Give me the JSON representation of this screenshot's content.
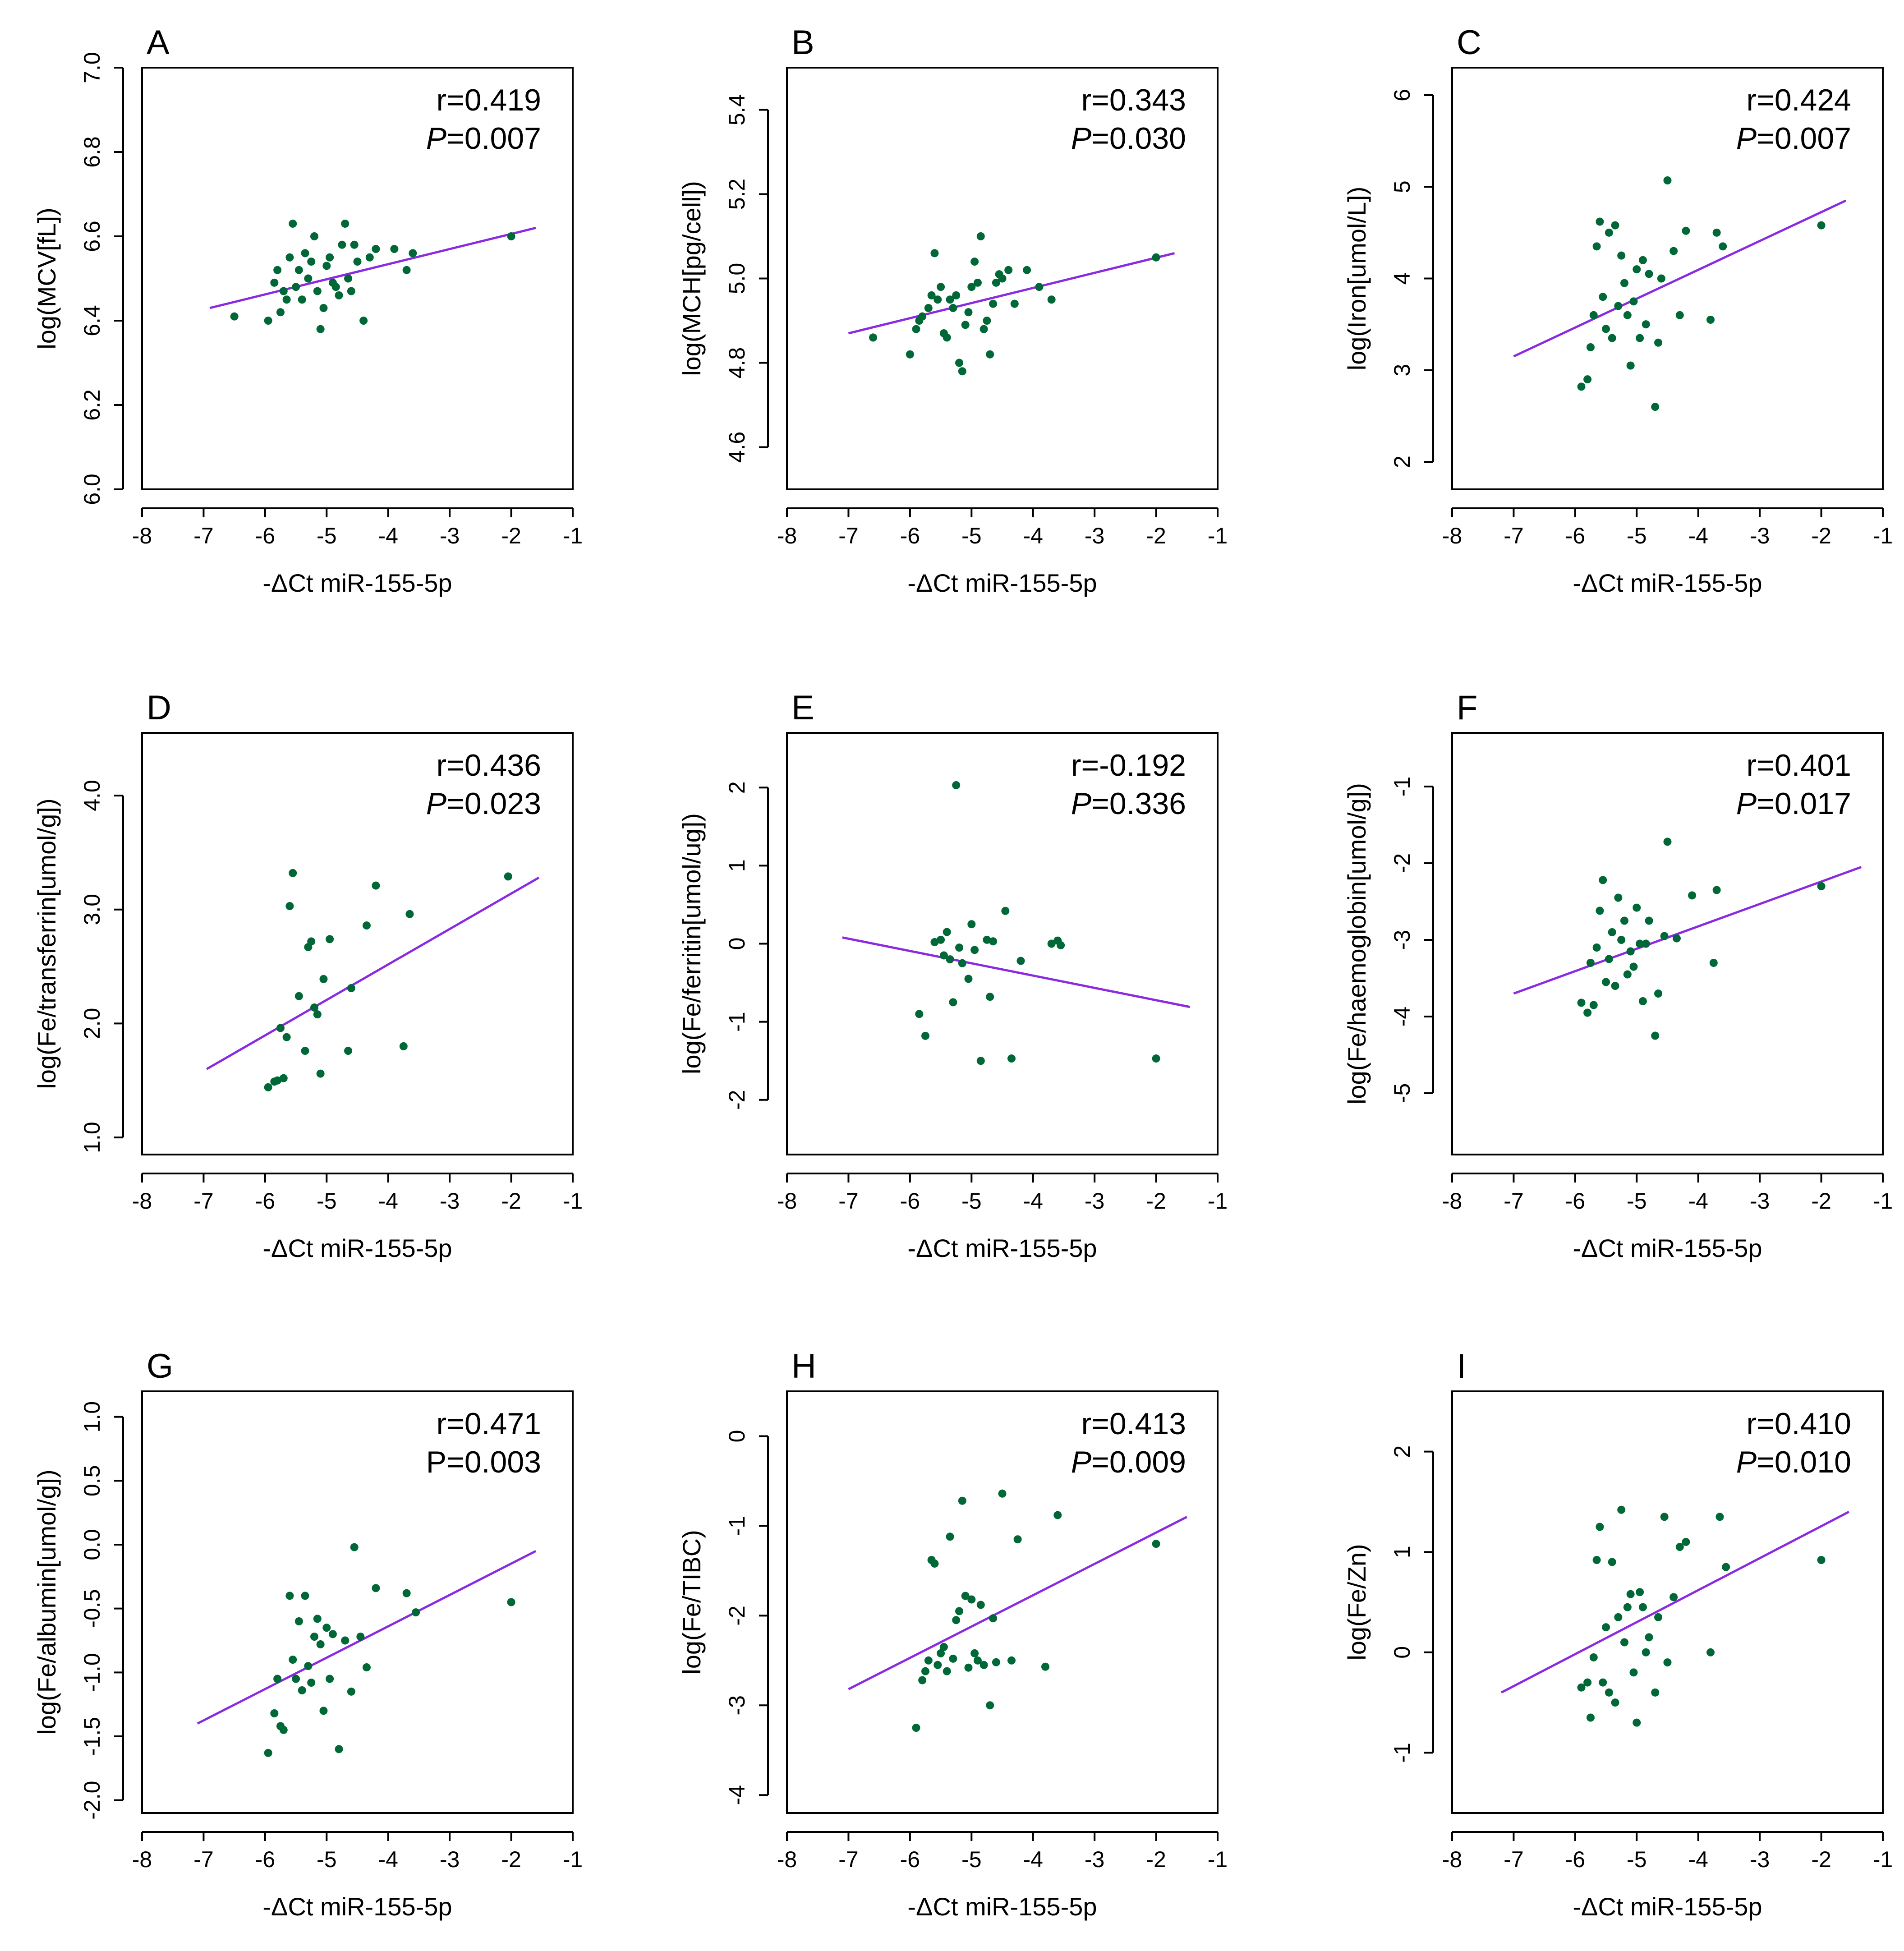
{
  "figure": {
    "point_color": "#006837",
    "line_color": "#8a2be2"
  },
  "chart_data": [
    {
      "panel": "A",
      "type": "scatter",
      "xlabel": "-ΔCt miR-155-5p",
      "ylabel": "log(MCV[fL])",
      "xlim": [
        -8,
        -1
      ],
      "ylim": [
        6.0,
        7.0
      ],
      "xticks": [
        -8,
        -7,
        -6,
        -5,
        -4,
        -3,
        -2,
        -1
      ],
      "yticks": [
        6.0,
        6.2,
        6.4,
        6.6,
        6.8,
        7.0
      ],
      "ytick_labels": [
        "6.0",
        "6.2",
        "6.4",
        "6.6",
        "6.8",
        "7.0"
      ],
      "r_text": "r=0.419",
      "p_label": "P",
      "p_italic": true,
      "p_value_text": "=0.007",
      "fit_line": {
        "x": [
          -6.9,
          -1.6
        ],
        "y": [
          6.43,
          6.62
        ]
      },
      "points": {
        "x": [
          -6.5,
          -5.95,
          -5.85,
          -5.8,
          -5.75,
          -5.7,
          -5.65,
          -5.6,
          -5.55,
          -5.5,
          -5.45,
          -5.4,
          -5.35,
          -5.3,
          -5.25,
          -5.2,
          -5.15,
          -5.1,
          -5.05,
          -5.0,
          -4.95,
          -4.9,
          -4.85,
          -4.8,
          -4.75,
          -4.7,
          -4.65,
          -4.6,
          -4.55,
          -4.5,
          -4.4,
          -4.3,
          -4.2,
          -3.9,
          -3.7,
          -3.6,
          -2.0
        ],
        "y": [
          6.41,
          6.4,
          6.49,
          6.52,
          6.42,
          6.47,
          6.45,
          6.55,
          6.63,
          6.48,
          6.52,
          6.45,
          6.56,
          6.5,
          6.54,
          6.6,
          6.47,
          6.38,
          6.43,
          6.53,
          6.55,
          6.49,
          6.48,
          6.46,
          6.58,
          6.63,
          6.5,
          6.47,
          6.58,
          6.54,
          6.4,
          6.55,
          6.57,
          6.57,
          6.52,
          6.56,
          6.6
        ]
      }
    },
    {
      "panel": "B",
      "type": "scatter",
      "xlabel": "-ΔCt miR-155-5p",
      "ylabel": "log(MCH[pg/cell])",
      "xlim": [
        -8,
        -1
      ],
      "ylim": [
        4.5,
        5.5
      ],
      "xticks": [
        -8,
        -7,
        -6,
        -5,
        -4,
        -3,
        -2,
        -1
      ],
      "yticks": [
        4.6,
        4.8,
        5.0,
        5.2,
        5.4
      ],
      "ytick_labels": [
        "4.6",
        "4.8",
        "5.0",
        "5.2",
        "5.4"
      ],
      "r_text": "r=0.343",
      "p_label": "P",
      "p_italic": true,
      "p_value_text": "=0.030",
      "fit_line": {
        "x": [
          -7.0,
          -1.7
        ],
        "y": [
          4.87,
          5.06
        ]
      },
      "points": {
        "x": [
          -6.6,
          -6.0,
          -5.9,
          -5.85,
          -5.8,
          -5.7,
          -5.65,
          -5.6,
          -5.55,
          -5.5,
          -5.45,
          -5.4,
          -5.35,
          -5.3,
          -5.25,
          -5.2,
          -5.15,
          -5.1,
          -5.05,
          -5.0,
          -4.95,
          -4.9,
          -4.85,
          -4.8,
          -4.75,
          -4.7,
          -4.65,
          -4.6,
          -4.55,
          -4.5,
          -4.4,
          -4.3,
          -4.1,
          -3.9,
          -3.7,
          -2.0
        ],
        "y": [
          4.86,
          4.82,
          4.88,
          4.9,
          4.91,
          4.93,
          4.96,
          5.06,
          4.95,
          4.98,
          4.87,
          4.86,
          4.95,
          4.93,
          4.96,
          4.8,
          4.78,
          4.89,
          4.92,
          4.98,
          5.04,
          4.99,
          5.1,
          4.88,
          4.9,
          4.82,
          4.94,
          4.99,
          5.01,
          5.0,
          5.02,
          4.94,
          5.02,
          4.98,
          4.95,
          5.05
        ]
      }
    },
    {
      "panel": "C",
      "type": "scatter",
      "xlabel": "-ΔCt miR-155-5p",
      "ylabel": "log(Iron[umol/L])",
      "xlim": [
        -8,
        -1
      ],
      "ylim": [
        1.7,
        6.3
      ],
      "xticks": [
        -8,
        -7,
        -6,
        -5,
        -4,
        -3,
        -2,
        -1
      ],
      "yticks": [
        2,
        3,
        4,
        5,
        6
      ],
      "ytick_labels": [
        "2",
        "3",
        "4",
        "5",
        "6"
      ],
      "r_text": "r=0.424",
      "p_label": "P",
      "p_italic": true,
      "p_value_text": "=0.007",
      "fit_line": {
        "x": [
          -7.0,
          -1.6
        ],
        "y": [
          3.15,
          4.85
        ]
      },
      "points": {
        "x": [
          -5.9,
          -5.8,
          -5.75,
          -5.7,
          -5.65,
          -5.6,
          -5.55,
          -5.5,
          -5.45,
          -5.4,
          -5.35,
          -5.3,
          -5.25,
          -5.2,
          -5.15,
          -5.1,
          -5.05,
          -5.0,
          -4.95,
          -4.9,
          -4.85,
          -4.8,
          -4.7,
          -4.65,
          -4.6,
          -4.5,
          -4.4,
          -4.3,
          -4.2,
          -3.8,
          -3.7,
          -3.6,
          -2.0
        ],
        "y": [
          2.82,
          2.9,
          3.25,
          3.6,
          4.35,
          4.62,
          3.8,
          3.45,
          4.5,
          3.35,
          4.58,
          3.7,
          4.25,
          3.95,
          3.6,
          3.05,
          3.75,
          4.1,
          3.35,
          4.2,
          3.5,
          4.05,
          2.6,
          3.3,
          4.0,
          5.07,
          4.3,
          3.6,
          4.52,
          3.55,
          4.5,
          4.35,
          4.58
        ]
      }
    },
    {
      "panel": "D",
      "type": "scatter",
      "xlabel": "-ΔCt miR-155-5p",
      "ylabel": "log(Fe/transferrin[umol/g])",
      "xlim": [
        -8,
        -1
      ],
      "ylim": [
        0.85,
        4.55
      ],
      "xticks": [
        -8,
        -7,
        -6,
        -5,
        -4,
        -3,
        -2,
        -1
      ],
      "yticks": [
        1.0,
        2.0,
        3.0,
        4.0
      ],
      "ytick_labels": [
        "1.0",
        "2.0",
        "3.0",
        "4.0"
      ],
      "r_text": "r=0.436",
      "p_label": "P",
      "p_italic": true,
      "p_value_text": "=0.023",
      "fit_line": {
        "x": [
          -6.95,
          -1.55
        ],
        "y": [
          1.6,
          3.28
        ]
      },
      "points": {
        "x": [
          -5.95,
          -5.85,
          -5.8,
          -5.75,
          -5.7,
          -5.65,
          -5.6,
          -5.55,
          -5.45,
          -5.35,
          -5.3,
          -5.25,
          -5.2,
          -5.15,
          -5.1,
          -5.05,
          -4.95,
          -4.65,
          -4.6,
          -4.35,
          -4.2,
          -3.75,
          -3.65,
          -2.05
        ],
        "y": [
          1.44,
          1.49,
          1.5,
          1.96,
          1.52,
          1.88,
          3.03,
          3.32,
          2.24,
          1.76,
          2.67,
          2.72,
          2.14,
          2.08,
          1.56,
          2.39,
          2.74,
          1.76,
          2.31,
          2.86,
          3.21,
          1.8,
          2.96,
          3.29
        ]
      }
    },
    {
      "panel": "E",
      "type": "scatter",
      "xlabel": "-ΔCt miR-155-5p",
      "ylabel": "log(Fe/ferritin[umol/ug])",
      "xlim": [
        -8,
        -1
      ],
      "ylim": [
        -2.7,
        2.7
      ],
      "xticks": [
        -8,
        -7,
        -6,
        -5,
        -4,
        -3,
        -2,
        -1
      ],
      "yticks": [
        -2,
        -1,
        0,
        1,
        2
      ],
      "ytick_labels": [
        "-2",
        "-1",
        "0",
        "1",
        "2"
      ],
      "r_text": "r=-0.192",
      "p_label": "P",
      "p_italic": true,
      "p_value_text": "=0.336",
      "fit_line": {
        "x": [
          -7.1,
          -1.45
        ],
        "y": [
          0.08,
          -0.81
        ]
      },
      "points": {
        "x": [
          -5.85,
          -5.75,
          -5.6,
          -5.5,
          -5.45,
          -5.4,
          -5.35,
          -5.3,
          -5.25,
          -5.2,
          -5.15,
          -5.05,
          -5.0,
          -4.95,
          -4.85,
          -4.75,
          -4.7,
          -4.65,
          -4.45,
          -4.35,
          -4.2,
          -3.7,
          -3.6,
          -3.55,
          -2.0
        ],
        "y": [
          -0.9,
          -1.18,
          0.02,
          0.05,
          -0.15,
          0.15,
          -0.2,
          -0.75,
          2.03,
          -0.05,
          -0.25,
          -0.45,
          0.25,
          -0.08,
          -1.5,
          0.05,
          -0.68,
          0.03,
          0.42,
          -1.47,
          -0.22,
          0.0,
          0.04,
          -0.02,
          -1.47
        ]
      }
    },
    {
      "panel": "F",
      "type": "scatter",
      "xlabel": "-ΔCt miR-155-5p",
      "ylabel": "log(Fe/haemoglobin[umol/g])",
      "xlim": [
        -8,
        -1
      ],
      "ylim": [
        -5.8,
        -0.3
      ],
      "xticks": [
        -8,
        -7,
        -6,
        -5,
        -4,
        -3,
        -2,
        -1
      ],
      "yticks": [
        -5,
        -4,
        -3,
        -2,
        -1
      ],
      "ytick_labels": [
        "-5",
        "-4",
        "-3",
        "-2",
        "-1"
      ],
      "r_text": "r=0.401",
      "p_label": "P",
      "p_italic": true,
      "p_value_text": "=0.017",
      "fit_line": {
        "x": [
          -7.0,
          -1.35
        ],
        "y": [
          -3.7,
          -2.05
        ]
      },
      "points": {
        "x": [
          -5.9,
          -5.8,
          -5.75,
          -5.7,
          -5.65,
          -5.6,
          -5.55,
          -5.5,
          -5.45,
          -5.4,
          -5.35,
          -5.3,
          -5.25,
          -5.2,
          -5.15,
          -5.1,
          -5.05,
          -5.0,
          -4.95,
          -4.9,
          -4.85,
          -4.8,
          -4.7,
          -4.65,
          -4.55,
          -4.5,
          -4.35,
          -4.1,
          -3.75,
          -3.7,
          -2.0
        ],
        "y": [
          -3.82,
          -3.95,
          -3.3,
          -3.85,
          -3.1,
          -2.62,
          -2.22,
          -3.55,
          -3.25,
          -2.9,
          -3.6,
          -2.45,
          -3.0,
          -2.75,
          -3.45,
          -3.15,
          -3.35,
          -2.58,
          -3.05,
          -3.8,
          -3.05,
          -2.75,
          -4.25,
          -3.7,
          -2.95,
          -1.72,
          -2.98,
          -2.42,
          -3.3,
          -2.35,
          -2.3
        ]
      }
    },
    {
      "panel": "G",
      "type": "scatter",
      "xlabel": "-ΔCt miR-155-5p",
      "ylabel": "log(Fe/albumin[umol/g])",
      "xlim": [
        -8,
        -1
      ],
      "ylim": [
        -2.1,
        1.2
      ],
      "xticks": [
        -8,
        -7,
        -6,
        -5,
        -4,
        -3,
        -2,
        -1
      ],
      "yticks": [
        -2.0,
        -1.5,
        -1.0,
        -0.5,
        0.0,
        0.5,
        1.0
      ],
      "ytick_labels": [
        "-2.0",
        "-1.5",
        "-1.0",
        "-0.5",
        "0.0",
        "0.5",
        "1.0"
      ],
      "r_text": "r=0.471",
      "p_label": "P",
      "p_italic": false,
      "p_value_text": "=0.003",
      "fit_line": {
        "x": [
          -7.1,
          -1.6
        ],
        "y": [
          -1.4,
          -0.05
        ]
      },
      "points": {
        "x": [
          -5.95,
          -5.85,
          -5.8,
          -5.75,
          -5.7,
          -5.6,
          -5.55,
          -5.5,
          -5.45,
          -5.4,
          -5.35,
          -5.3,
          -5.25,
          -5.2,
          -5.15,
          -5.1,
          -5.05,
          -5.0,
          -4.95,
          -4.9,
          -4.8,
          -4.7,
          -4.6,
          -4.55,
          -4.45,
          -4.35,
          -4.2,
          -3.7,
          -3.55,
          -2.0
        ],
        "y": [
          -1.63,
          -1.32,
          -1.05,
          -1.42,
          -1.45,
          -0.4,
          -0.9,
          -1.05,
          -0.6,
          -1.14,
          -0.4,
          -0.95,
          -1.08,
          -0.72,
          -0.58,
          -0.78,
          -1.3,
          -0.65,
          -1.05,
          -0.7,
          -1.6,
          -0.75,
          -1.15,
          -0.02,
          -0.72,
          -0.96,
          -0.34,
          -0.38,
          -0.53,
          -0.45
        ]
      }
    },
    {
      "panel": "H",
      "type": "scatter",
      "xlabel": "-ΔCt miR-155-5p",
      "ylabel": "log(Fe/TIBC)",
      "xlim": [
        -8,
        -1
      ],
      "ylim": [
        -4.2,
        0.5
      ],
      "xticks": [
        -8,
        -7,
        -6,
        -5,
        -4,
        -3,
        -2,
        -1
      ],
      "yticks": [
        -4,
        -3,
        -2,
        -1,
        0
      ],
      "ytick_labels": [
        "-4",
        "-3",
        "-2",
        "-1",
        "0"
      ],
      "r_text": "r=0.413",
      "p_label": "P",
      "p_italic": true,
      "p_value_text": "=0.009",
      "fit_line": {
        "x": [
          -7.0,
          -1.5
        ],
        "y": [
          -2.82,
          -0.9
        ]
      },
      "points": {
        "x": [
          -5.9,
          -5.8,
          -5.75,
          -5.7,
          -5.65,
          -5.6,
          -5.55,
          -5.5,
          -5.45,
          -5.4,
          -5.35,
          -5.3,
          -5.25,
          -5.2,
          -5.15,
          -5.1,
          -5.05,
          -5.0,
          -4.95,
          -4.9,
          -4.85,
          -4.8,
          -4.7,
          -4.65,
          -4.6,
          -4.5,
          -4.35,
          -4.25,
          -3.8,
          -3.6,
          -2.0
        ],
        "y": [
          -3.25,
          -2.72,
          -2.62,
          -2.5,
          -1.38,
          -1.42,
          -2.55,
          -2.42,
          -2.35,
          -2.62,
          -1.12,
          -2.48,
          -2.05,
          -1.95,
          -0.72,
          -1.78,
          -2.58,
          -1.82,
          -2.42,
          -2.5,
          -1.88,
          -2.55,
          -3.0,
          -2.03,
          -2.52,
          -0.64,
          -2.5,
          -1.15,
          -2.57,
          -0.88,
          -1.2
        ]
      }
    },
    {
      "panel": "I",
      "type": "scatter",
      "xlabel": "-ΔCt miR-155-5p",
      "ylabel": "log(Fe/Zn)",
      "xlim": [
        -8,
        -1
      ],
      "ylim": [
        -1.6,
        2.6
      ],
      "xticks": [
        -8,
        -7,
        -6,
        -5,
        -4,
        -3,
        -2,
        -1
      ],
      "yticks": [
        -1,
        0,
        1,
        2
      ],
      "ytick_labels": [
        "-1",
        "0",
        "1",
        "2"
      ],
      "r_text": "r=0.410",
      "p_label": "P",
      "p_italic": true,
      "p_value_text": "=0.010",
      "fit_line": {
        "x": [
          -7.2,
          -1.55
        ],
        "y": [
          -0.4,
          1.4
        ]
      },
      "points": {
        "x": [
          -5.9,
          -5.8,
          -5.75,
          -5.7,
          -5.65,
          -5.6,
          -5.55,
          -5.5,
          -5.45,
          -5.4,
          -5.35,
          -5.3,
          -5.25,
          -5.2,
          -5.15,
          -5.1,
          -5.05,
          -5.0,
          -4.95,
          -4.9,
          -4.85,
          -4.8,
          -4.7,
          -4.65,
          -4.55,
          -4.5,
          -4.4,
          -4.3,
          -4.2,
          -3.8,
          -3.65,
          -3.55,
          -2.0
        ],
        "y": [
          -0.35,
          -0.3,
          -0.65,
          -0.05,
          0.92,
          1.25,
          -0.3,
          0.25,
          -0.4,
          0.9,
          -0.5,
          0.35,
          1.42,
          0.1,
          0.45,
          0.58,
          -0.2,
          -0.7,
          0.6,
          0.45,
          0.0,
          0.15,
          -0.4,
          0.35,
          1.35,
          -0.1,
          0.55,
          1.05,
          1.1,
          0.0,
          1.35,
          0.85,
          0.92
        ]
      }
    }
  ]
}
